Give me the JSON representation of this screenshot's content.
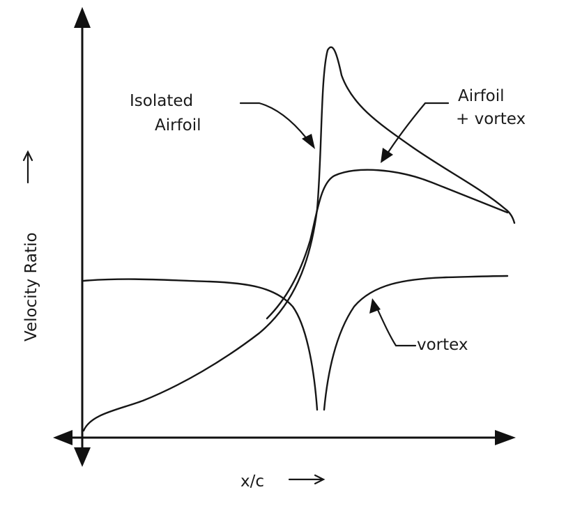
{
  "figure": {
    "axes": {
      "x_label": "x/c",
      "y_label": "Velocity Ratio"
    },
    "labels": {
      "isolated_line1": "Isolated",
      "isolated_line2": "Airfoil",
      "combined_line1": "Airfoil",
      "combined_line2": "+ vortex",
      "vortex": "vortex"
    },
    "colors": {
      "ink": "#161616",
      "paper": "#ffffff"
    }
  }
}
